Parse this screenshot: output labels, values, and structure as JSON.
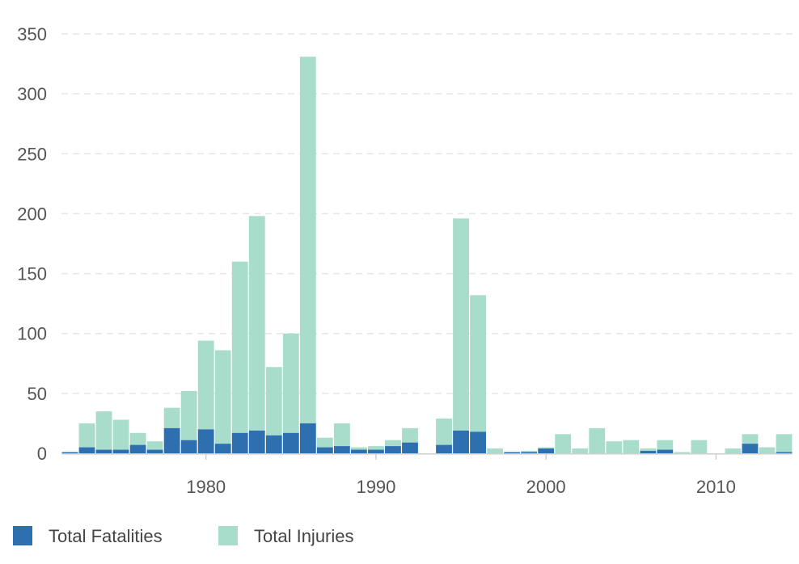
{
  "chart_data": {
    "type": "bar",
    "stacked": true,
    "title": "",
    "xlabel": "",
    "ylabel": "",
    "xlim": [
      1971.5,
      2014.5
    ],
    "ylim": [
      0,
      350
    ],
    "y_ticks": [
      0,
      50,
      100,
      150,
      200,
      250,
      300,
      350
    ],
    "x_ticks": [
      1980,
      1990,
      2000,
      2010
    ],
    "grid": "horizontal dashed",
    "legend_position": "bottom-left",
    "x": [
      1972,
      1973,
      1974,
      1975,
      1976,
      1977,
      1978,
      1979,
      1980,
      1981,
      1982,
      1983,
      1984,
      1985,
      1986,
      1987,
      1988,
      1989,
      1990,
      1991,
      1992,
      1993,
      1994,
      1995,
      1996,
      1997,
      1998,
      1999,
      2000,
      2001,
      2002,
      2003,
      2004,
      2005,
      2006,
      2007,
      2008,
      2009,
      2010,
      2011,
      2012,
      2013,
      2014
    ],
    "series": [
      {
        "name": "Total Fatalities",
        "color": "#2e6fb0",
        "values": [
          1,
          5,
          3,
          3,
          7,
          3,
          21,
          11,
          20,
          8,
          17,
          19,
          15,
          17,
          25,
          5,
          6,
          3,
          3,
          6,
          9,
          0,
          7,
          19,
          18,
          0,
          1,
          1,
          4,
          0,
          0,
          0,
          0,
          0,
          2,
          3,
          0,
          0,
          0,
          0,
          8,
          0,
          1
        ]
      },
      {
        "name": "Total Injuries",
        "color": "#a8dccb",
        "values": [
          0,
          20,
          32,
          25,
          10,
          7,
          17,
          41,
          74,
          78,
          143,
          179,
          57,
          83,
          306,
          8,
          19,
          2,
          3,
          5,
          12,
          0,
          22,
          177,
          114,
          4,
          0,
          1,
          1,
          16,
          4,
          21,
          10,
          11,
          2,
          8,
          1,
          11,
          0,
          4,
          8,
          5,
          15
        ]
      }
    ]
  }
}
